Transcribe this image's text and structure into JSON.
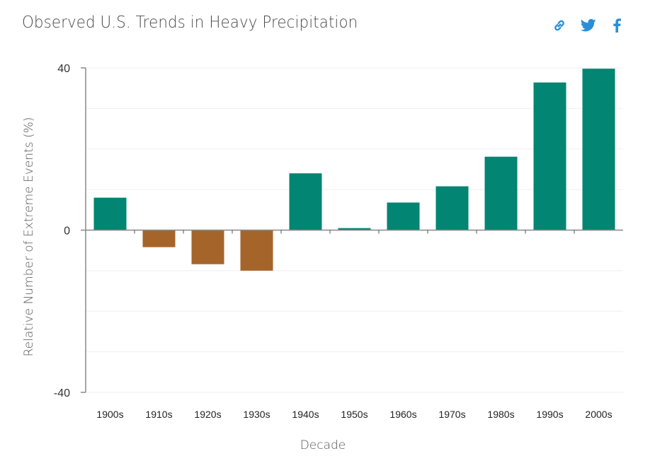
{
  "header": {
    "title": "Observed U.S. Trends in Heavy Precipitation",
    "share_icons": [
      {
        "name": "link-icon",
        "label": "link"
      },
      {
        "name": "twitter-icon",
        "label": "twitter"
      },
      {
        "name": "facebook-icon",
        "label": "facebook"
      }
    ],
    "icon_color": "#2b8fd6"
  },
  "colors": {
    "positive": "#028572",
    "negative": "#a5652a",
    "axis": "#888888",
    "grid": "#efefef"
  },
  "chart_data": {
    "type": "bar",
    "title": "Observed U.S. Trends in Heavy Precipitation",
    "xlabel": "Decade",
    "ylabel": "Relative Number of Extreme Events (%)",
    "categories": [
      "1900s",
      "1910s",
      "1920s",
      "1930s",
      "1940s",
      "1950s",
      "1960s",
      "1970s",
      "1980s",
      "1990s",
      "2000s"
    ],
    "values": [
      8,
      -4.2,
      -8.4,
      -10,
      14,
      0.5,
      6.8,
      10.8,
      18.1,
      36.4,
      39.8
    ],
    "ylim": [
      -40,
      40
    ],
    "yticks": [
      {
        "value": 40,
        "label": "40"
      },
      {
        "value": 0,
        "label": "0"
      },
      {
        "value": -40,
        "label": "-40"
      }
    ],
    "gridlines": [
      40,
      30,
      20,
      10,
      -10,
      -20,
      -30,
      -40
    ],
    "grid": true,
    "legend": "none"
  }
}
